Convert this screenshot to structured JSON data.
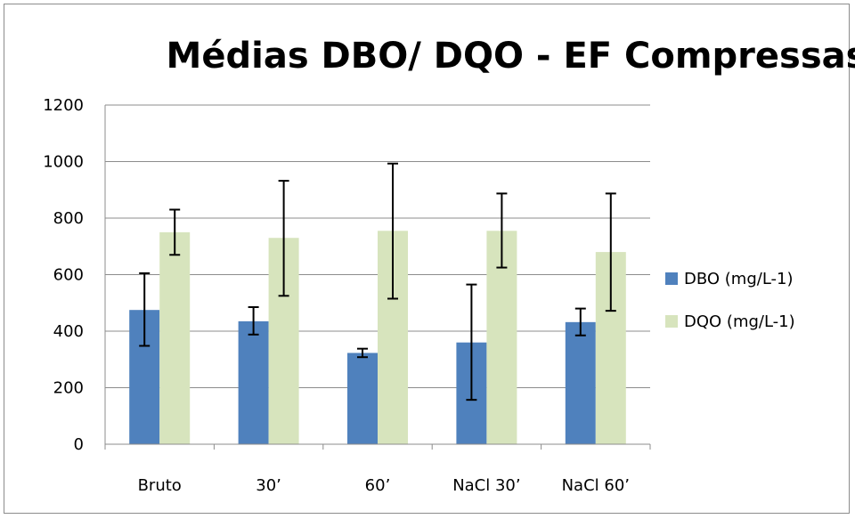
{
  "chart_data": {
    "type": "bar",
    "title": "Médias DBO/ DQO - EF Compressas",
    "xlabel": "",
    "ylabel": "",
    "categories": [
      "Bruto",
      "30’",
      "60’",
      "NaCl 30’",
      "NaCl 60’"
    ],
    "ylim": [
      0,
      1200
    ],
    "yticks": [
      0,
      200,
      400,
      600,
      800,
      1000,
      1200
    ],
    "grid": true,
    "legend_position": "right",
    "series": [
      {
        "name": "DBO (mg/L-1)",
        "color": "#4f81bd",
        "values": [
          475,
          435,
          323,
          360,
          432
        ],
        "error_low": [
          348,
          388,
          308,
          157,
          385
        ],
        "error_high": [
          605,
          485,
          338,
          565,
          480
        ]
      },
      {
        "name": "DQO (mg/L-1)",
        "color": "#d7e4bd",
        "values": [
          750,
          730,
          755,
          755,
          680
        ],
        "error_low": [
          670,
          525,
          515,
          625,
          472
        ],
        "error_high": [
          830,
          932,
          993,
          887,
          887
        ]
      }
    ]
  }
}
